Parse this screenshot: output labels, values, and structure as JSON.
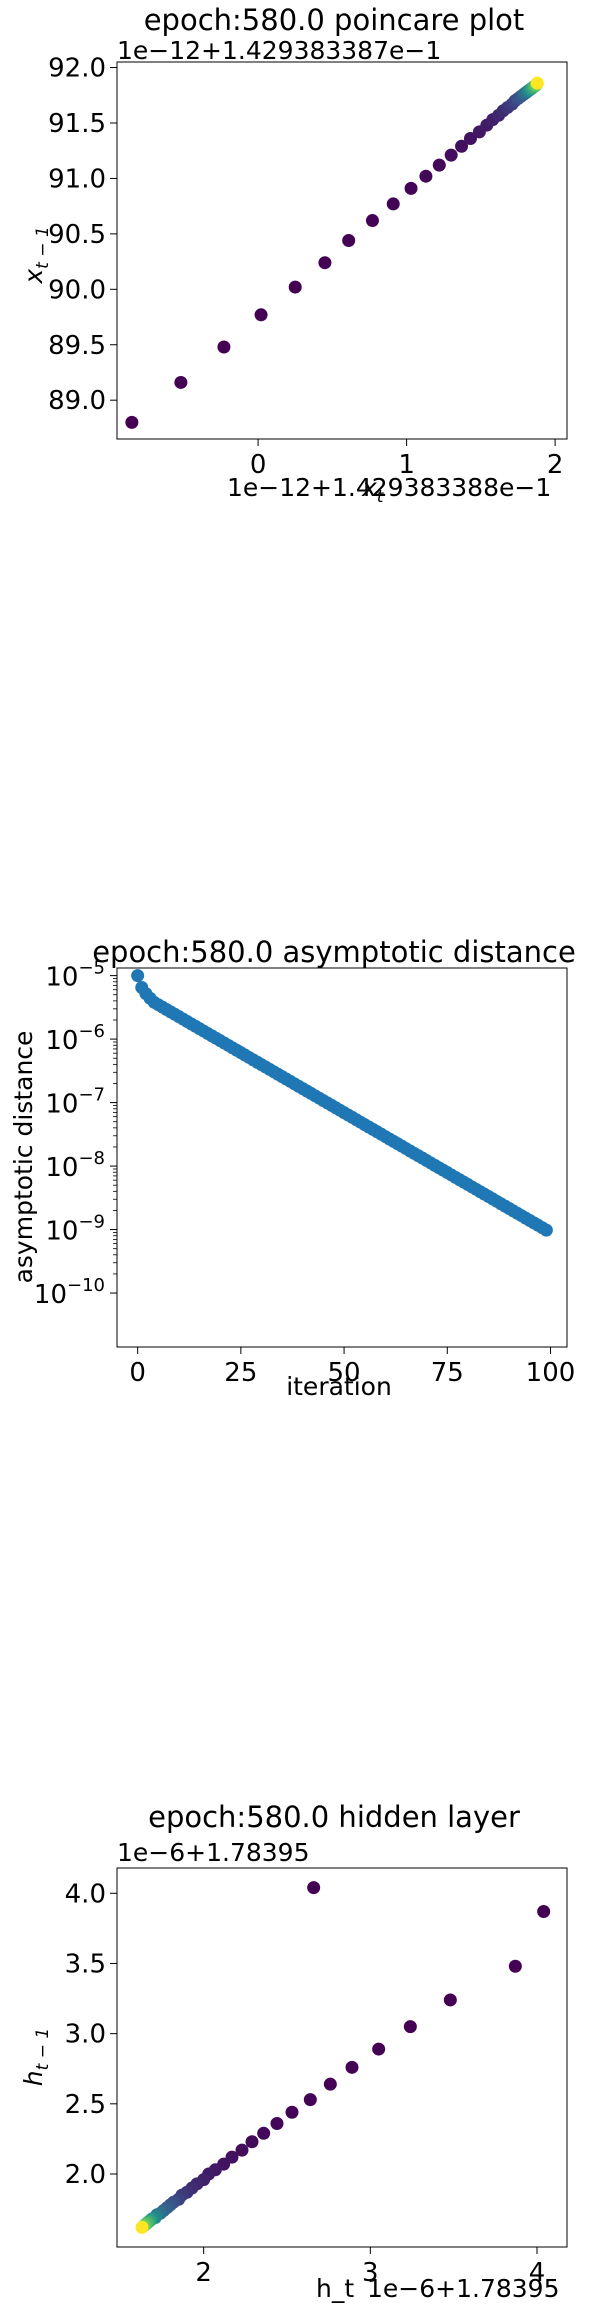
{
  "chart_data": [
    {
      "type": "scatter",
      "title": "epoch:580.0 poincare plot",
      "xlabel": "x_t",
      "ylabel": "x_{t-1}",
      "x_offset_label": "1e−12+1.429383388e−1",
      "y_offset_label": "1e−12+1.429383387e−1",
      "xlim": [
        -0.95,
        2.08
      ],
      "ylim": [
        88.65,
        92.05
      ],
      "xticks": [
        0,
        1,
        2
      ],
      "xtick_labels": [
        "0",
        "1",
        "2"
      ],
      "yticks": [
        89.0,
        89.5,
        90.0,
        90.5,
        91.0,
        91.5,
        92.0
      ],
      "ytick_labels": [
        "89.0",
        "89.5",
        "90.0",
        "90.5",
        "91.0",
        "91.5",
        "92.0"
      ],
      "colormap": [
        "#440154",
        "#3b528b",
        "#21918c",
        "#5ec962",
        "#fde725"
      ],
      "points": {
        "x": [
          -0.85,
          -0.52,
          -0.23,
          0.02,
          0.25,
          0.45,
          0.61,
          0.77,
          0.91,
          1.03,
          1.13,
          1.22,
          1.3,
          1.37,
          1.43,
          1.49,
          1.54,
          1.58,
          1.62,
          1.65,
          1.68,
          1.71,
          1.73,
          1.75,
          1.77,
          1.79,
          1.8,
          1.81,
          1.82,
          1.83,
          1.84,
          1.85,
          1.86,
          1.87,
          1.875,
          1.88
        ],
        "y": [
          88.8,
          89.16,
          89.48,
          89.77,
          90.02,
          90.24,
          90.44,
          90.62,
          90.77,
          90.91,
          91.02,
          91.12,
          91.21,
          91.29,
          91.36,
          91.42,
          91.48,
          91.53,
          91.57,
          91.61,
          91.64,
          91.67,
          91.7,
          91.72,
          91.74,
          91.76,
          91.77,
          91.78,
          91.79,
          91.8,
          91.81,
          91.82,
          91.83,
          91.84,
          91.85,
          91.86
        ]
      }
    },
    {
      "type": "scatter",
      "title": "epoch:580.0 asymptotic distance",
      "xlabel": "iteration",
      "ylabel": "asymptotic distance",
      "y_scale": "log",
      "xlim": [
        -5,
        104
      ],
      "ylim_log10": [
        -10.85,
        -4.88
      ],
      "xticks": [
        0,
        25,
        50,
        75,
        100
      ],
      "xtick_labels": [
        "0",
        "25",
        "50",
        "75",
        "100"
      ],
      "ytick_exponents": [
        -5,
        -6,
        -7,
        -8,
        -9,
        -10
      ],
      "ytick_base": "10",
      "color": "#1f77b4",
      "series": {
        "n": 100,
        "start": 1e-05,
        "ratio": 0.9167,
        "first_points": [
          1e-05,
          6.5e-06,
          5.2e-06,
          4.4e-06,
          3.8e-06
        ]
      }
    },
    {
      "type": "scatter",
      "title": "epoch:580.0 hidden layer",
      "xlabel": "h_t",
      "ylabel": "h_{t-1}",
      "x_offset_label": "1e−6+1.78395",
      "y_offset_label": "1e−6+1.78395",
      "xlim": [
        1.48,
        4.18
      ],
      "ylim": [
        1.48,
        4.18
      ],
      "xticks": [
        2,
        3,
        4
      ],
      "xtick_labels": [
        "2",
        "3",
        "4"
      ],
      "yticks": [
        2.0,
        2.5,
        3.0,
        3.5,
        4.0
      ],
      "ytick_labels": [
        "2.0",
        "2.5",
        "3.0",
        "3.5",
        "4.0"
      ],
      "colormap": [
        "#440154",
        "#3b528b",
        "#21918c",
        "#5ec962",
        "#fde725"
      ],
      "points": {
        "x": [
          2.66,
          4.04,
          3.87,
          3.48,
          3.24,
          3.05,
          2.89,
          2.76,
          2.64,
          2.53,
          2.44,
          2.36,
          2.29,
          2.23,
          2.17,
          2.12,
          2.07,
          2.03,
          2.0,
          1.96,
          1.93,
          1.9,
          1.87,
          1.85,
          1.82,
          1.8,
          1.78,
          1.76,
          1.74,
          1.72,
          1.71,
          1.69,
          1.68,
          1.67,
          1.66,
          1.65,
          1.64,
          1.63
        ],
        "y": [
          4.04,
          3.87,
          3.48,
          3.24,
          3.05,
          2.89,
          2.76,
          2.64,
          2.53,
          2.44,
          2.36,
          2.29,
          2.23,
          2.17,
          2.12,
          2.07,
          2.03,
          2.0,
          1.96,
          1.93,
          1.9,
          1.87,
          1.85,
          1.82,
          1.8,
          1.78,
          1.76,
          1.74,
          1.72,
          1.71,
          1.69,
          1.68,
          1.67,
          1.66,
          1.65,
          1.64,
          1.63,
          1.62
        ]
      }
    }
  ]
}
